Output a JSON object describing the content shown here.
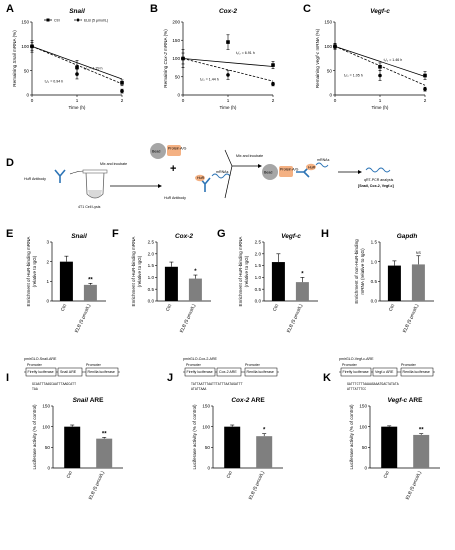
{
  "panels": {
    "A": "A",
    "B": "B",
    "C": "C",
    "D": "D",
    "E": "E",
    "F": "F",
    "G": "G",
    "H": "H",
    "I": "I",
    "J": "J",
    "K": "K"
  },
  "top_legend": {
    "ctrl": "Ctrl",
    "elb": "ELB (5 μmol/L)"
  },
  "schematic": {
    "hur_antibody": "HuR Antibody",
    "mix_incubate": "Mix and incubate",
    "lysis": "4T1 Cell Lysis",
    "protein_ag": "Protein A/G",
    "bead": "Bead",
    "plus": "+",
    "hur_antibody_2": "HuR Antibody",
    "hur": "HuR",
    "mrnas": "mRNAs",
    "mix_incubate_2": "Mix and incubate",
    "hur_mid": "HuR",
    "mrnas_2": "mRNAs",
    "qrt": "qRT-PCR analysis",
    "genes": "[Snail, Cox-2, Vegf-c]"
  },
  "bar_labels": {
    "ctrl": "Ctrl",
    "elb": "ELB (5 μmol/L)"
  },
  "constructs": {
    "I": {
      "name": "pmirGLO-Snail-ARE",
      "promoter1": "Promoter",
      "promoter2": "Promoter",
      "box1": "Firefly luciferase",
      "box2": "Snail ARE",
      "box3": "Renilla luciferase",
      "seq1": "GCAATTTAAGCAATTTAAGCATT",
      "seq2": "TAA"
    },
    "J": {
      "name": "pmirGLO-Cox-2-ARE",
      "promoter1": "Promoter",
      "promoter2": "Promoter",
      "box1": "Firefly luciferase",
      "box2": "Cox-2 ARE",
      "box3": "Renilla luciferase",
      "seq1": "TATTAATTTAATTTATTTAATAGATTT",
      "seq2": "ATATTAAA"
    },
    "K": {
      "name": "pmirGLO-Vegf-c-ARE",
      "promoter1": "Promoter",
      "promoter2": "Promoter",
      "box1": "Firefly luciferase",
      "box2": "Vegf-c ARE",
      "box3": "Renilla luciferase",
      "seq1": "GATTTCTTTAAAAGAAATGACTATATA",
      "seq2": "ATTTATTTCC"
    }
  },
  "chart_data": [
    {
      "panel": "A",
      "type": "line",
      "title": "Snail",
      "xlabel": "Time (h)",
      "ylabel": "Remaining Snail mRNA (%)",
      "ylabel_parts": [
        "Remaining ",
        "Snail",
        " mRNA (%)"
      ],
      "x": [
        0,
        1,
        2
      ],
      "xticks": [
        "0",
        "1",
        "2"
      ],
      "ylim": [
        0,
        150
      ],
      "yticks": [
        "0",
        "50",
        "100",
        "150"
      ],
      "series": [
        {
          "name": "Ctrl",
          "values": [
            100,
            57,
            25
          ],
          "err": [
            12,
            14,
            6
          ],
          "fit_end": 33,
          "style": "solid",
          "marker": "square"
        },
        {
          "name": "ELB (5 μmol/L)",
          "values": [
            100,
            43,
            8
          ],
          "err": [
            8,
            10,
            4
          ],
          "fit_end": 23,
          "style": "dashed",
          "marker": "circle"
        }
      ],
      "annotations": [
        {
          "text": "t₁/₂ = 1.29 h",
          "x": 1.15,
          "y": 52
        },
        {
          "text": "t₁/₂ = 0.94 h",
          "x": 0.28,
          "y": 26
        }
      ]
    },
    {
      "panel": "B",
      "type": "line",
      "title": "Cox-2",
      "xlabel": "Time (h)",
      "ylabel": "Remaining Cox-2 mRNA (%)",
      "ylabel_parts": [
        "Remaining ",
        "Cox-2",
        " mRNA (%)"
      ],
      "x": [
        0,
        1,
        2
      ],
      "xticks": [
        "0",
        "1",
        "2"
      ],
      "ylim": [
        0,
        200
      ],
      "yticks": [
        "0",
        "50",
        "100",
        "150",
        "200"
      ],
      "series": [
        {
          "name": "Ctrl",
          "values": [
            100,
            145,
            82
          ],
          "err": [
            25,
            20,
            10
          ],
          "fit_end": 78,
          "style": "solid",
          "marker": "square"
        },
        {
          "name": "ELB (5 μmol/L)",
          "values": [
            100,
            55,
            30
          ],
          "err": [
            15,
            12,
            5
          ],
          "fit_end": 38,
          "style": "dashed",
          "marker": "circle"
        }
      ],
      "annotations": [
        {
          "text": "t₁/₂ = 6.91 h",
          "x": 1.18,
          "y": 112
        },
        {
          "text": "t₁/₂ = 1.44 h",
          "x": 0.38,
          "y": 40
        }
      ]
    },
    {
      "panel": "C",
      "type": "line",
      "title": "Vegf-c",
      "xlabel": "Time (h)",
      "ylabel": "Remaining Vegf-c mRNA (%)",
      "ylabel_parts": [
        "Remaining ",
        "Vegf-c",
        " mRNA (%)"
      ],
      "x": [
        0,
        1,
        2
      ],
      "xticks": [
        "0",
        "1",
        "2"
      ],
      "ylim": [
        0,
        150
      ],
      "yticks": [
        "0",
        "50",
        "100",
        "150"
      ],
      "series": [
        {
          "name": "Ctrl",
          "values": [
            100,
            58,
            40
          ],
          "err": [
            5,
            8,
            8
          ],
          "fit_end": 38,
          "style": "solid",
          "marker": "square"
        },
        {
          "name": "ELB (5 μmol/L)",
          "values": [
            100,
            40,
            12
          ],
          "err": [
            6,
            10,
            4
          ],
          "fit_end": 20,
          "style": "dashed",
          "marker": "circle"
        }
      ],
      "annotations": [
        {
          "text": "t₁/₂ = 1.46 h",
          "x": 1.08,
          "y": 70
        },
        {
          "text": "t₁/₂ = 1.05 h",
          "x": 0.2,
          "y": 38
        }
      ]
    },
    {
      "panel": "E",
      "type": "bar",
      "title": "Snail",
      "ylabel": [
        "Enrichment of HuR-binding mRNA",
        "(relative to IgG)"
      ],
      "categories": [
        "Ctrl",
        "ELB (5 μmol/L)"
      ],
      "values": [
        2.0,
        0.82
      ],
      "err": [
        0.28,
        0.08
      ],
      "ylim": [
        0,
        3
      ],
      "yticks": [
        "0",
        "1",
        "2",
        "3"
      ],
      "sig": [
        "",
        "**"
      ]
    },
    {
      "panel": "F",
      "type": "bar",
      "title": "Cox-2",
      "ylabel": [
        "Enrichment of HuR-binding mRNA",
        "(relative to IgG)"
      ],
      "categories": [
        "Ctrl",
        "ELB (5 μmol/L)"
      ],
      "values": [
        1.45,
        0.95
      ],
      "err": [
        0.2,
        0.15
      ],
      "ylim": [
        0,
        2.5
      ],
      "yticks": [
        "0.0",
        "0.5",
        "1.0",
        "1.5",
        "2.0",
        "2.5"
      ],
      "sig": [
        "",
        "*"
      ]
    },
    {
      "panel": "G",
      "type": "bar",
      "title": "Vegf-c",
      "ylabel": [
        "Enrichment of HuR-binding mRNA",
        "(relative to IgG)"
      ],
      "categories": [
        "Ctrl",
        "ELB (5 μmol/L)"
      ],
      "values": [
        1.65,
        0.8
      ],
      "err": [
        0.35,
        0.2
      ],
      "ylim": [
        0,
        2.5
      ],
      "yticks": [
        "0.0",
        "0.5",
        "1.0",
        "1.5",
        "2.0",
        "2.5"
      ],
      "sig": [
        "",
        "*"
      ]
    },
    {
      "panel": "H",
      "type": "bar",
      "title": "Gapdh",
      "ylabel": [
        "Enrichment of non-HuR-binding",
        "mRNA (relative to IgG)"
      ],
      "categories": [
        "Ctrl",
        "ELB (5 μmol/L)"
      ],
      "values": [
        0.9,
        0.93
      ],
      "err": [
        0.12,
        0.22
      ],
      "ylim": [
        0,
        1.5
      ],
      "yticks": [
        "0.0",
        "0.5",
        "1.0",
        "1.5"
      ],
      "sig": [
        "",
        "NS"
      ]
    },
    {
      "panel": "I",
      "type": "bar",
      "title": "Snail ARE",
      "title_parts": [
        "Snail",
        " ARE"
      ],
      "ylabel": [
        "Luciferase activity (% of control)"
      ],
      "categories": [
        "Ctrl",
        "ELB (5 μmol/L)"
      ],
      "values": [
        100,
        71
      ],
      "err": [
        4,
        3
      ],
      "ylim": [
        0,
        150
      ],
      "yticks": [
        "0",
        "50",
        "100",
        "150"
      ],
      "sig": [
        "",
        "**"
      ]
    },
    {
      "panel": "J",
      "type": "bar",
      "title": "Cox-2 ARE",
      "title_parts": [
        "Cox-2",
        " ARE"
      ],
      "ylabel": [
        "Luciferase activity (% of control)"
      ],
      "categories": [
        "Ctrl",
        "ELB (5 μmol/L)"
      ],
      "values": [
        100,
        77
      ],
      "err": [
        4,
        6
      ],
      "ylim": [
        0,
        150
      ],
      "yticks": [
        "0",
        "50",
        "100",
        "150"
      ],
      "sig": [
        "",
        "*"
      ]
    },
    {
      "panel": "K",
      "type": "bar",
      "title": "Vegf-c ARE",
      "title_parts": [
        "Vegf-c",
        " ARE"
      ],
      "ylabel": [
        "Luciferase activity (% of control)"
      ],
      "categories": [
        "Ctrl",
        "ELB (5 μmol/L)"
      ],
      "values": [
        100,
        80
      ],
      "err": [
        2,
        3
      ],
      "ylim": [
        0,
        150
      ],
      "yticks": [
        "0",
        "50",
        "100",
        "150"
      ],
      "sig": [
        "",
        "**"
      ]
    }
  ]
}
